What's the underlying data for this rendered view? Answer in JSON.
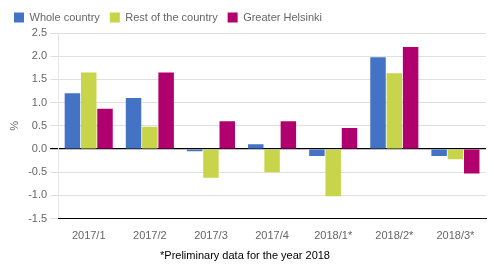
{
  "chart_data": {
    "type": "bar",
    "categories": [
      "2017/1",
      "2017/2",
      "2017/3",
      "2017/4",
      "2018/1*",
      "2018/2*",
      "2018/3*"
    ],
    "series": [
      {
        "name": "Whole country",
        "color": "#4472c4",
        "values": [
          1.2,
          1.1,
          -0.05,
          0.1,
          -0.15,
          1.98,
          -0.15
        ]
      },
      {
        "name": "Rest of the country",
        "color": "#c8d44a",
        "values": [
          1.65,
          0.48,
          -0.62,
          -0.5,
          -1.02,
          1.63,
          -0.22
        ]
      },
      {
        "name": "Greater Helsinki",
        "color": "#b0006e",
        "values": [
          0.87,
          1.65,
          0.6,
          0.6,
          0.45,
          2.2,
          -0.53
        ]
      }
    ],
    "ylabel": "%",
    "footnote": "*Preliminary data for the year 2018",
    "ylim": [
      -1.5,
      2.5
    ],
    "yticks": [
      -1.5,
      {
        "value": -1.0,
        "label": "-1.0"
      },
      -0.5,
      {
        "value": 0.0,
        "label": "0.0"
      },
      0.5,
      {
        "value": 1.0,
        "label": "1.0"
      },
      1.5,
      {
        "value": 2.0,
        "label": "2.0"
      },
      2.5
    ],
    "grid": true,
    "legend": "upper left"
  }
}
